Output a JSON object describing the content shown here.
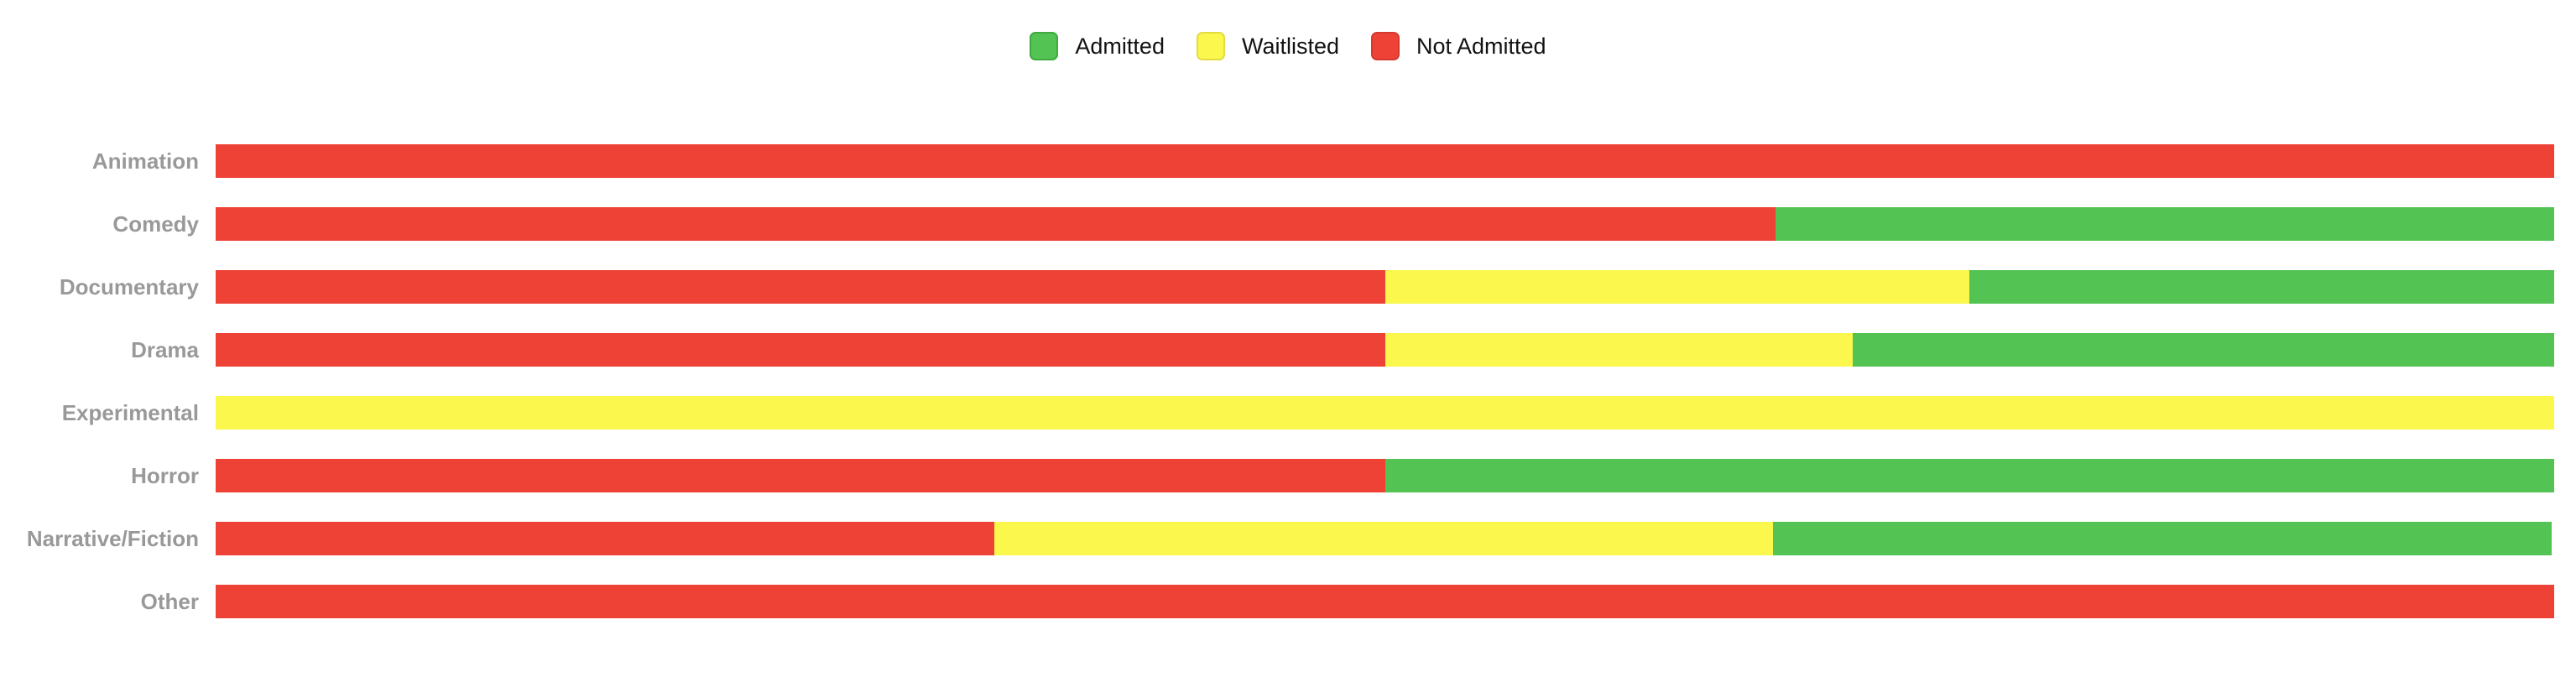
{
  "legend": {
    "items": [
      {
        "label": "Admitted",
        "color": "#53c453",
        "border": "#41a940"
      },
      {
        "label": "Waitlisted",
        "color": "#fbf74d",
        "border": "#e3dc41"
      },
      {
        "label": "Not Admitted",
        "color": "#ee4236",
        "border": "#d63a2f"
      }
    ]
  },
  "chart_data": {
    "type": "bar",
    "orientation": "horizontal",
    "stacked": true,
    "unit": "percent",
    "title": "",
    "xlabel": "",
    "ylabel": "",
    "xlim": [
      0,
      100
    ],
    "grid": false,
    "legend_position": "top",
    "category_label_color": "#999999",
    "legend_text_color": "#121212",
    "background_color": "#ffffff",
    "categories": [
      "Animation",
      "Comedy",
      "Documentary",
      "Drama",
      "Experimental",
      "Horror",
      "Narrative/Fiction",
      "Other"
    ],
    "series": [
      {
        "name": "Not Admitted",
        "color": "#ee4236",
        "values": [
          100,
          66.7,
          50,
          50,
          0,
          50,
          33.3,
          100
        ]
      },
      {
        "name": "Waitlisted",
        "color": "#fbf74d",
        "values": [
          0,
          0,
          25,
          20,
          100,
          0,
          33.3,
          0
        ]
      },
      {
        "name": "Admitted",
        "color": "#53c453",
        "values": [
          0,
          33.3,
          25,
          30,
          0,
          50,
          33.3,
          0
        ]
      }
    ]
  }
}
